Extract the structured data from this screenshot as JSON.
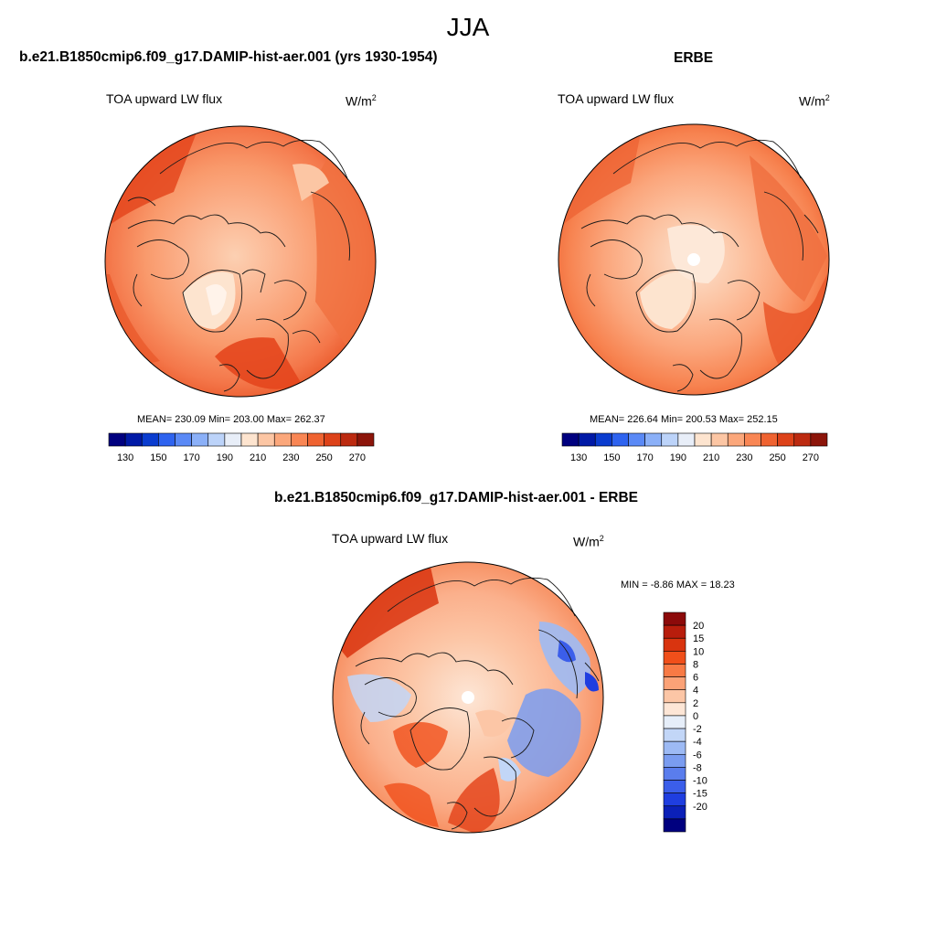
{
  "figure": {
    "title": "JJA"
  },
  "panels": [
    {
      "title": "b.e21.B1850cmip6.f09_g17.DAMIP-hist-aer.001 (yrs 1930-1954)",
      "variable": "TOA upward LW flux",
      "units_base": "W/m",
      "units_exp": "2",
      "stats": "MEAN= 230.09  Min= 203.00  Max= 262.37",
      "colorbar": {
        "colors": [
          "#00007f",
          "#0019a6",
          "#0a3ccf",
          "#2e63ef",
          "#5a89f6",
          "#8bb0f8",
          "#bcd3f9",
          "#e8eef8",
          "#fde4cf",
          "#fcc6a4",
          "#fba77b",
          "#f98654",
          "#ef6331",
          "#dd4219",
          "#bc2a10",
          "#8c150a"
        ],
        "ticks": [
          "130",
          "150",
          "170",
          "190",
          "210",
          "230",
          "250",
          "270"
        ]
      }
    },
    {
      "title": "ERBE",
      "variable": "TOA upward LW flux",
      "units_base": "W/m",
      "units_exp": "2",
      "stats": "MEAN= 226.64  Min= 200.53  Max= 252.15",
      "colorbar": {
        "colors": [
          "#00007f",
          "#0019a6",
          "#0a3ccf",
          "#2e63ef",
          "#5a89f6",
          "#8bb0f8",
          "#bcd3f9",
          "#e8eef8",
          "#fde4cf",
          "#fcc6a4",
          "#fba77b",
          "#f98654",
          "#ef6331",
          "#dd4219",
          "#bc2a10",
          "#8c150a"
        ],
        "ticks": [
          "130",
          "150",
          "170",
          "190",
          "210",
          "230",
          "250",
          "270"
        ]
      }
    },
    {
      "title": "b.e21.B1850cmip6.f09_g17.DAMIP-hist-aer.001 - ERBE",
      "variable": "TOA upward LW flux",
      "units_base": "W/m",
      "units_exp": "2",
      "stats": "MIN =  -8.86 MAX =  18.23",
      "colorbar": {
        "colors": [
          "#8c0a0a",
          "#b81d0c",
          "#d9340f",
          "#f04f1a",
          "#f87a45",
          "#fba277",
          "#fcc6a6",
          "#fde6d6",
          "#e6eef9",
          "#c2d6f7",
          "#9dbaf4",
          "#7a9cf0",
          "#5a7ded",
          "#3b5eea",
          "#1f3ee0",
          "#0b20b8",
          "#00007f"
        ],
        "ticks": [
          "20",
          "15",
          "10",
          "8",
          "6",
          "4",
          "2",
          "0",
          "-2",
          "-4",
          "-6",
          "-8",
          "-10",
          "-15",
          "-20"
        ]
      }
    }
  ]
}
